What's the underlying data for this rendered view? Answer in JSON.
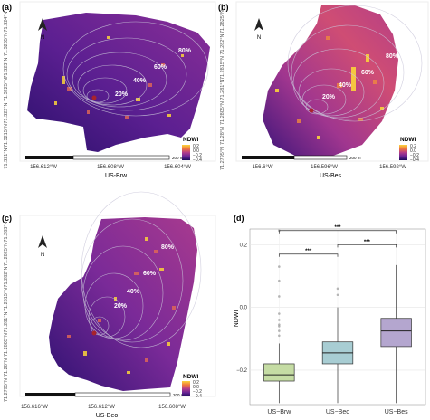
{
  "panels": [
    {
      "letter": "(a)",
      "site": "US-Brw",
      "yticks": [
        "71.324°N",
        "71.3235°N",
        "71.323°N",
        "71.3225°N",
        "71.322°N",
        "71.3215°N",
        "71.321°N"
      ],
      "xticks": [
        "156.612°W",
        "156.608°W",
        "156.604°W"
      ],
      "contours": [
        "80%",
        "60%",
        "40%",
        "20%"
      ],
      "scalebar": "200 m",
      "legend_title": "NDWI",
      "legend_ticks": [
        "0.2",
        "0.0",
        "−0.2",
        "−0.4"
      ],
      "north": "N"
    },
    {
      "letter": "(b)",
      "site": "US-Bes",
      "yticks": [
        "71.2825°N",
        "71.282°N",
        "71.2815°N",
        "71.281°N",
        "71.2805°N",
        "71.28°N",
        "71.2795°N"
      ],
      "xticks": [
        "156.6°W",
        "156.596°W",
        "156.592°W"
      ],
      "contours": [
        "80%",
        "60%",
        "40%",
        "20%"
      ],
      "scalebar": "200 m",
      "legend_title": "NDWI",
      "legend_ticks": [
        "0.2",
        "0.0",
        "−0.2",
        "−0.4"
      ],
      "north": "N"
    },
    {
      "letter": "(c)",
      "site": "US-Beo",
      "yticks": [
        "71.283°N",
        "71.2825°N",
        "71.282°N",
        "71.2815°N",
        "71.281°N",
        "71.2805°N",
        "71.28°N",
        "71.2795°N"
      ],
      "xticks": [
        "156.616°W",
        "156.612°W",
        "156.608°W"
      ],
      "contours": [
        "80%",
        "60%",
        "40%",
        "20%"
      ],
      "scalebar": "200 m",
      "legend_title": "NDWI",
      "legend_ticks": [
        "0.2",
        "0.0",
        "−0.2",
        "−0.4"
      ],
      "north": "N"
    }
  ],
  "colors": {
    "ndwi_ramp": [
      "#1b0c5a",
      "#4a1c8c",
      "#7b2b9a",
      "#b33d8a",
      "#e05a5c",
      "#f6963a",
      "#fbd43a"
    ],
    "contour": "#c9c6d9",
    "box_brw": "#c5dca4",
    "box_beo": "#a8cdd3",
    "box_bes": "#b4a6cf"
  },
  "chart_data": {
    "letter": "(d)",
    "type": "box",
    "ylabel": "NDWI",
    "ylim": [
      -0.31,
      0.25
    ],
    "yticks": [
      "0.2",
      "0.0",
      "−0.2"
    ],
    "ytick_values": [
      0.2,
      0.0,
      -0.2
    ],
    "categories": [
      "US−Brw",
      "US−Beo",
      "US−Bes"
    ],
    "boxes": [
      {
        "q1": -0.235,
        "median": -0.215,
        "q3": -0.18,
        "whisker_low": -0.305,
        "whisker_high": -0.115,
        "outliers": [
          -0.09,
          -0.075,
          -0.06,
          -0.055,
          -0.04,
          -0.02,
          0.035,
          0.085,
          0.13,
          0.245
        ]
      },
      {
        "q1": -0.18,
        "median": -0.145,
        "q3": -0.11,
        "whisker_low": -0.305,
        "whisker_high": 0.0,
        "outliers": [
          0.04,
          0.06
        ]
      },
      {
        "q1": -0.125,
        "median": -0.075,
        "q3": -0.035,
        "whisker_low": -0.305,
        "whisker_high": 0.135,
        "outliers": []
      }
    ],
    "significance": [
      {
        "from": 0,
        "to": 1,
        "label": "***",
        "y": 0.17
      },
      {
        "from": 1,
        "to": 2,
        "label": "***",
        "y": 0.2
      },
      {
        "from": 0,
        "to": 2,
        "label": "***",
        "y": 0.245
      }
    ]
  }
}
